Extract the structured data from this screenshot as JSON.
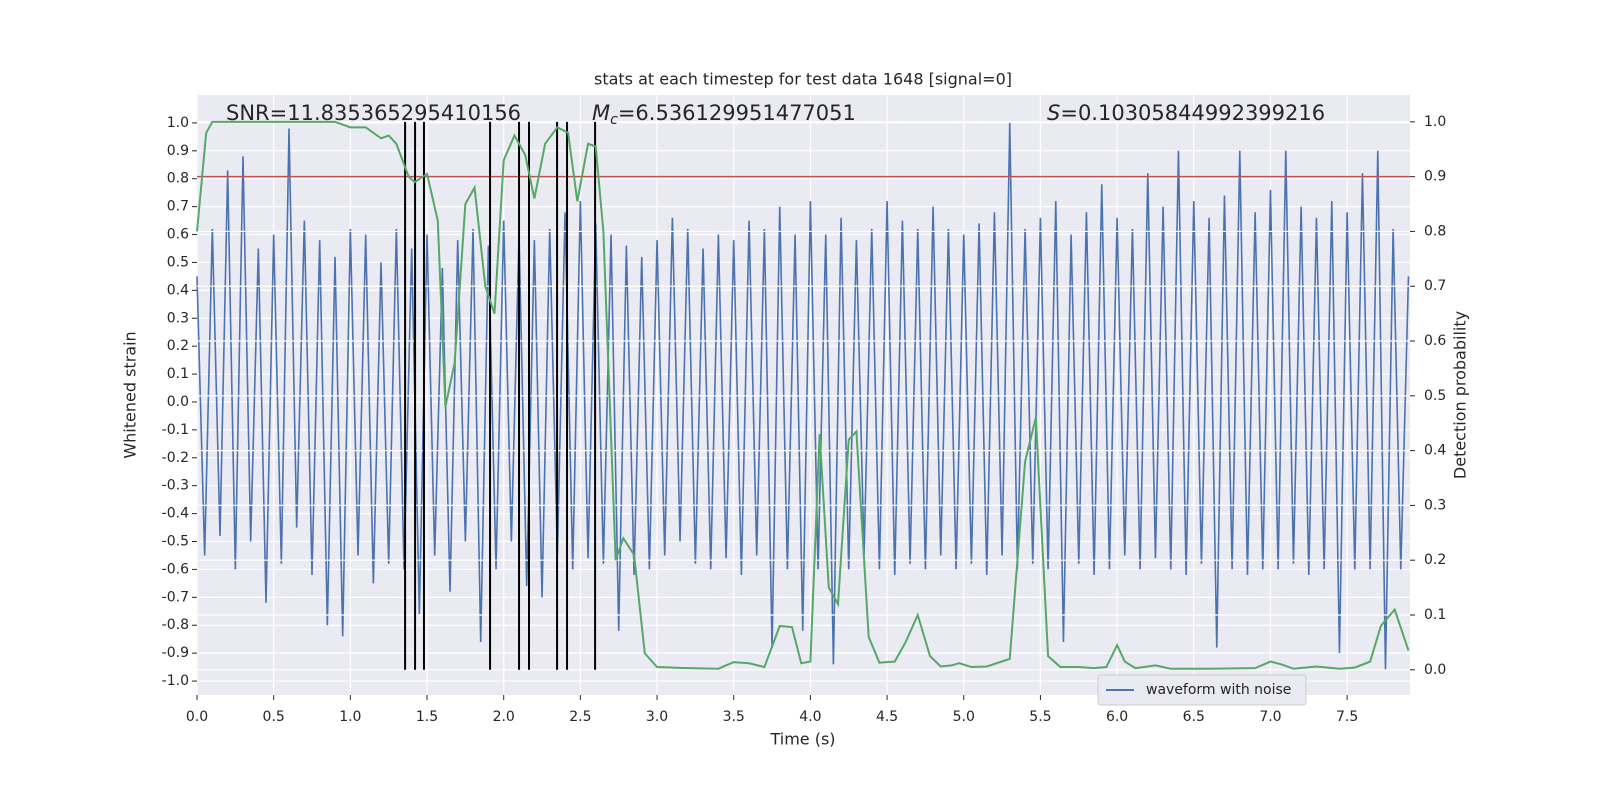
{
  "chart_data": {
    "type": "line",
    "title": "stats at each timestep for test data 1648 [signal=0]",
    "xlabel": "Time (s)",
    "ylabel": "Whitened strain",
    "y2label": "Detection probability",
    "background": "#eaeaf2",
    "grid": true,
    "legend": "lower right",
    "xlim": [
      0,
      7.91
    ],
    "ylim": [
      -1.05,
      1.1
    ],
    "y2lim": [
      -0.046,
      1.049
    ],
    "xticks": [
      {
        "value": 0,
        "label": "0.0"
      },
      0.5,
      {
        "value": 1,
        "label": "1.0"
      },
      1.5,
      {
        "value": 2,
        "label": "2.0"
      },
      2.5,
      {
        "value": 3,
        "label": "3.0"
      },
      3.5,
      {
        "value": 4,
        "label": "4.0"
      },
      4.5,
      {
        "value": 5,
        "label": "5.0"
      },
      5.5,
      {
        "value": 6,
        "label": "6.0"
      },
      6.5,
      {
        "value": 7,
        "label": "7.0"
      },
      7.5
    ],
    "yticks": [
      {
        "value": -1,
        "label": "-1.0"
      },
      -0.9,
      -0.8,
      -0.7,
      -0.6,
      -0.5,
      -0.4,
      -0.3,
      -0.2,
      -0.1,
      {
        "value": 0,
        "label": "0.0"
      },
      0.1,
      0.2,
      0.3,
      0.4,
      0.5,
      0.6,
      0.7,
      0.8,
      0.9,
      {
        "value": 1,
        "label": "1.0"
      }
    ],
    "y2ticks": [
      {
        "value": 0,
        "label": "0.0"
      },
      0.1,
      0.2,
      0.3,
      0.4,
      0.5,
      0.6,
      0.7,
      0.8,
      0.9,
      {
        "value": 1,
        "label": "1.0"
      }
    ],
    "annotations": [
      {
        "text": "SNR=11.835365295410156"
      },
      {
        "symbol": "M",
        "subscript": "c",
        "text": "=6.536129951477051"
      },
      {
        "symbol": "S",
        "text": "=0.10305844992399216"
      }
    ],
    "hlines": [
      {
        "value": 0.9,
        "axis": "y2",
        "color": "#c44e52"
      }
    ],
    "vlines": {
      "x": [
        1.357,
        1.422,
        1.48,
        1.911,
        2.1,
        2.165,
        2.348,
        2.413,
        2.596
      ],
      "span": [
        0,
        1
      ],
      "axis": "y2",
      "color": "#000000"
    },
    "series": [
      {
        "name": "waveform with noise",
        "color": "#4c72b0",
        "x": [
          0,
          0.05,
          0.1,
          0.15,
          0.2,
          0.25,
          0.3,
          0.35,
          0.4,
          0.45,
          0.5,
          0.55,
          0.6,
          0.65,
          0.7,
          0.75,
          0.8,
          0.85,
          0.9,
          0.95,
          1,
          1.05,
          1.1,
          1.15,
          1.2,
          1.25,
          1.3,
          1.35,
          1.4,
          1.45,
          1.5,
          1.55,
          1.6,
          1.65,
          1.7,
          1.75,
          1.8,
          1.85,
          1.9,
          1.95,
          2,
          2.05,
          2.1,
          2.15,
          2.2,
          2.25,
          2.3,
          2.35,
          2.4,
          2.45,
          2.5,
          2.55,
          2.6,
          2.65,
          2.7,
          2.75,
          2.8,
          2.85,
          2.9,
          2.95,
          3,
          3.05,
          3.1,
          3.15,
          3.2,
          3.25,
          3.3,
          3.35,
          3.4,
          3.45,
          3.5,
          3.55,
          3.6,
          3.65,
          3.7,
          3.75,
          3.8,
          3.85,
          3.9,
          3.95,
          4,
          4.05,
          4.1,
          4.15,
          4.2,
          4.25,
          4.3,
          4.35,
          4.4,
          4.45,
          4.5,
          4.55,
          4.6,
          4.65,
          4.7,
          4.75,
          4.8,
          4.85,
          4.9,
          4.95,
          5,
          5.05,
          5.1,
          5.15,
          5.2,
          5.25,
          5.3,
          5.35,
          5.4,
          5.45,
          5.5,
          5.55,
          5.6,
          5.65,
          5.7,
          5.75,
          5.8,
          5.85,
          5.9,
          5.95,
          6,
          6.05,
          6.1,
          6.15,
          6.2,
          6.25,
          6.3,
          6.35,
          6.4,
          6.45,
          6.5,
          6.55,
          6.6,
          6.65,
          6.7,
          6.75,
          6.8,
          6.85,
          6.9,
          6.95,
          7,
          7.05,
          7.1,
          7.15,
          7.2,
          7.25,
          7.3,
          7.35,
          7.4,
          7.45,
          7.5,
          7.55,
          7.6,
          7.65,
          7.7,
          7.75,
          7.8,
          7.85,
          7.9
        ],
        "values": [
          0.45,
          -0.55,
          0.62,
          -0.48,
          0.83,
          -0.6,
          0.88,
          -0.5,
          0.55,
          -0.72,
          0.6,
          -0.58,
          0.98,
          -0.45,
          0.65,
          -0.62,
          0.58,
          -0.8,
          0.52,
          -0.84,
          0.62,
          -0.55,
          0.6,
          -0.65,
          0.5,
          -0.58,
          0.62,
          -0.6,
          0.55,
          -0.76,
          0.6,
          -0.55,
          0.48,
          -0.68,
          0.58,
          -0.5,
          0.62,
          -0.86,
          0.56,
          -0.6,
          0.65,
          -0.5,
          0.6,
          -0.66,
          0.58,
          -0.7,
          0.62,
          -0.55,
          0.68,
          -0.6,
          0.72,
          -0.56,
          0.64,
          -0.58,
          0.6,
          -0.82,
          0.56,
          -0.62,
          0.52,
          -0.6,
          0.58,
          -0.55,
          0.66,
          -0.5,
          0.62,
          -0.58,
          0.55,
          -0.6,
          0.6,
          -0.56,
          0.58,
          -0.62,
          0.65,
          -0.55,
          0.62,
          -0.88,
          0.7,
          -0.6,
          0.6,
          -0.82,
          0.72,
          -0.6,
          0.6,
          -0.94,
          0.66,
          -0.6,
          0.58,
          -0.55,
          0.62,
          -0.6,
          0.72,
          -0.62,
          0.65,
          -0.58,
          0.62,
          -0.6,
          0.7,
          -0.55,
          0.62,
          -0.6,
          0.6,
          -0.58,
          0.64,
          -0.62,
          0.68,
          -0.55,
          1.0,
          -0.6,
          0.62,
          -0.58,
          0.66,
          -0.6,
          0.72,
          -0.86,
          0.6,
          -0.58,
          0.68,
          -0.62,
          0.78,
          -0.6,
          0.66,
          -0.55,
          0.62,
          -0.6,
          0.82,
          -0.56,
          0.7,
          -0.6,
          0.9,
          -0.62,
          0.72,
          -0.58,
          0.66,
          -0.88,
          0.74,
          -0.6,
          0.9,
          -0.62,
          0.68,
          -0.6,
          0.76,
          -0.6,
          0.9,
          -0.58,
          0.7,
          -0.62,
          0.66,
          -0.6,
          0.72,
          -0.9,
          0.68,
          -0.6,
          0.82,
          -0.6,
          0.9,
          -0.96,
          0.62,
          -0.6,
          0.45
        ]
      },
      {
        "axis": "y2",
        "color": "#55a868",
        "x": [
          0,
          0.06,
          0.1,
          0.5,
          0.9,
          1,
          1.1,
          1.2,
          1.25,
          1.3,
          1.38,
          1.42,
          1.5,
          1.57,
          1.62,
          1.68,
          1.75,
          1.81,
          1.88,
          1.94,
          2,
          2.07,
          2.14,
          2.2,
          2.27,
          2.35,
          2.42,
          2.48,
          2.55,
          2.6,
          2.65,
          2.73,
          2.78,
          2.85,
          2.92,
          3,
          3.2,
          3.4,
          3.5,
          3.6,
          3.7,
          3.8,
          3.88,
          3.94,
          4,
          4.06,
          4.12,
          4.18,
          4.25,
          4.3,
          4.38,
          4.45,
          4.55,
          4.62,
          4.7,
          4.78,
          4.85,
          4.92,
          4.97,
          5.05,
          5.15,
          5.3,
          5.4,
          5.47,
          5.55,
          5.63,
          5.75,
          5.85,
          5.93,
          6,
          6.05,
          6.12,
          6.25,
          6.35,
          6.6,
          6.9,
          7,
          7.07,
          7.15,
          7.3,
          7.45,
          7.55,
          7.65,
          7.72,
          7.81,
          7.87,
          7.9
        ],
        "values": [
          0.8,
          0.98,
          1,
          1,
          1,
          0.99,
          0.99,
          0.97,
          0.975,
          0.96,
          0.9,
          0.89,
          0.905,
          0.82,
          0.48,
          0.56,
          0.85,
          0.88,
          0.7,
          0.65,
          0.93,
          0.975,
          0.94,
          0.86,
          0.96,
          0.99,
          0.98,
          0.855,
          0.96,
          0.955,
          0.8,
          0.2,
          0.24,
          0.21,
          0.03,
          0.005,
          0.003,
          0.002,
          0.014,
          0.012,
          0.005,
          0.08,
          0.078,
          0.012,
          0.015,
          0.43,
          0.15,
          0.12,
          0.42,
          0.435,
          0.06,
          0.013,
          0.015,
          0.05,
          0.1,
          0.025,
          0.006,
          0.008,
          0.012,
          0.005,
          0.006,
          0.02,
          0.38,
          0.46,
          0.025,
          0.005,
          0.005,
          0.003,
          0.005,
          0.045,
          0.015,
          0.003,
          0.008,
          0.002,
          0.002,
          0.003,
          0.015,
          0.01,
          0.002,
          0.006,
          0.002,
          0.004,
          0.015,
          0.08,
          0.11,
          0.06,
          0.035
        ]
      }
    ]
  }
}
